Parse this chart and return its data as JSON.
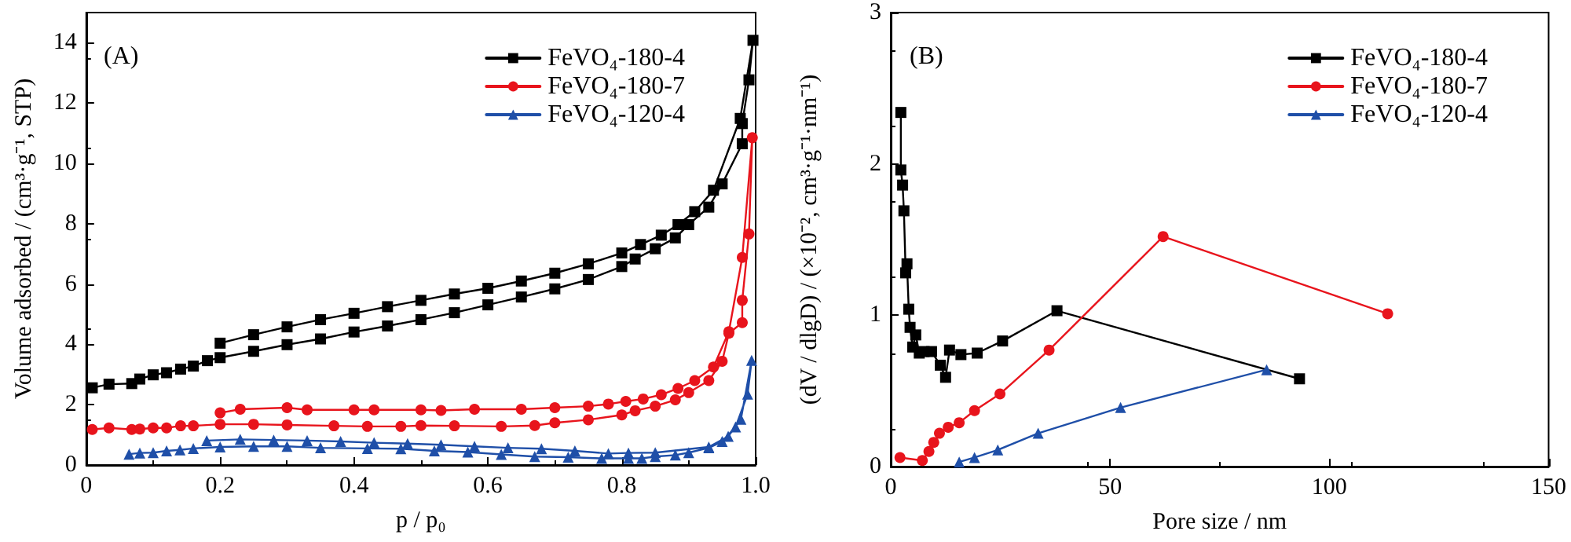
{
  "chart_data": [
    {
      "type": "line",
      "xlabel": "p / p₀",
      "ylabel": "Volume adsorbed / (cm³·g⁻¹, STP)",
      "annotations": [
        "(A)"
      ],
      "xlim": [
        0,
        1
      ],
      "xticks": [
        0,
        0.2,
        0.4,
        0.6,
        0.8,
        {
          "value": 1,
          "label": "1.0"
        }
      ],
      "ylim": [
        0,
        15
      ],
      "yticks": [
        0,
        2,
        4,
        6,
        8,
        10,
        12,
        14
      ],
      "grid": false,
      "legend": "top right",
      "line_style": "solid",
      "series": [
        {
          "name": "FeVO₄-180-4",
          "color": "#000000",
          "marker": "square",
          "x": [
            0.009,
            0.034,
            0.068,
            0.08,
            0.1,
            0.12,
            0.141,
            0.16,
            0.181,
            0.2,
            0.25,
            0.3,
            0.35,
            0.4,
            0.45,
            0.5,
            0.55,
            0.6,
            0.65,
            0.7,
            0.75,
            0.8,
            0.82,
            0.85,
            0.88,
            0.9,
            0.93,
            0.95,
            0.98,
            0.98,
            0.99,
            0.996,
            0.977,
            0.937,
            0.909,
            0.884,
            0.859,
            0.828,
            0.8,
            0.75,
            0.7,
            0.65,
            0.6,
            0.55,
            0.5,
            0.45,
            0.4,
            0.35,
            0.3,
            0.25,
            0.2
          ],
          "values": [
            2.56,
            2.68,
            2.7,
            2.85,
            2.99,
            3.06,
            3.18,
            3.28,
            3.46,
            3.56,
            3.77,
            3.99,
            4.18,
            4.41,
            4.61,
            4.82,
            5.05,
            5.31,
            5.57,
            5.84,
            6.15,
            6.58,
            6.83,
            7.17,
            7.53,
            7.97,
            8.55,
            9.32,
            10.65,
            11.32,
            12.77,
            14.08,
            11.49,
            9.11,
            8.4,
            7.97,
            7.62,
            7.31,
            7.03,
            6.67,
            6.36,
            6.1,
            5.86,
            5.67,
            5.46,
            5.25,
            5.03,
            4.82,
            4.58,
            4.32,
            4.04
          ]
        },
        {
          "name": "FeVO₄-180-7",
          "color": "#e8141c",
          "marker": "circle",
          "x": [
            0.009,
            0.034,
            0.068,
            0.08,
            0.1,
            0.12,
            0.141,
            0.16,
            0.2,
            0.25,
            0.3,
            0.37,
            0.42,
            0.47,
            0.5,
            0.55,
            0.62,
            0.67,
            0.7,
            0.75,
            0.8,
            0.82,
            0.85,
            0.88,
            0.9,
            0.93,
            0.95,
            0.96,
            0.98,
            0.98,
            0.99,
            0.995,
            0.98,
            0.96,
            0.937,
            0.909,
            0.884,
            0.859,
            0.832,
            0.806,
            0.78,
            0.75,
            0.7,
            0.65,
            0.58,
            0.53,
            0.5,
            0.43,
            0.4,
            0.33,
            0.3,
            0.23,
            0.2
          ],
          "values": [
            1.18,
            1.23,
            1.18,
            1.19,
            1.23,
            1.23,
            1.3,
            1.3,
            1.35,
            1.35,
            1.33,
            1.3,
            1.28,
            1.28,
            1.31,
            1.3,
            1.28,
            1.31,
            1.4,
            1.5,
            1.66,
            1.8,
            1.95,
            2.16,
            2.4,
            2.8,
            3.44,
            4.37,
            4.72,
            5.46,
            7.66,
            10.85,
            6.88,
            4.42,
            3.25,
            2.8,
            2.54,
            2.33,
            2.19,
            2.11,
            2.02,
            1.95,
            1.9,
            1.85,
            1.85,
            1.81,
            1.83,
            1.83,
            1.83,
            1.83,
            1.9,
            1.85,
            1.73
          ]
        },
        {
          "name": "FeVO₄-120-4",
          "color": "#1f4fa8",
          "marker": "triangle",
          "x": [
            0.064,
            0.08,
            0.1,
            0.12,
            0.14,
            0.16,
            0.2,
            0.25,
            0.3,
            0.35,
            0.42,
            0.47,
            0.52,
            0.57,
            0.62,
            0.67,
            0.72,
            0.77,
            0.81,
            0.83,
            0.85,
            0.88,
            0.9,
            0.93,
            0.95,
            0.97,
            0.988,
            0.994,
            0.978,
            0.959,
            0.93,
            0.85,
            0.81,
            0.78,
            0.73,
            0.68,
            0.63,
            0.58,
            0.53,
            0.48,
            0.43,
            0.38,
            0.33,
            0.28,
            0.23,
            0.18
          ],
          "values": [
            0.36,
            0.4,
            0.41,
            0.47,
            0.5,
            0.55,
            0.6,
            0.62,
            0.62,
            0.57,
            0.55,
            0.54,
            0.47,
            0.43,
            0.35,
            0.28,
            0.26,
            0.22,
            0.22,
            0.22,
            0.28,
            0.33,
            0.41,
            0.57,
            0.78,
            1.26,
            2.35,
            3.47,
            1.52,
            0.95,
            0.6,
            0.41,
            0.4,
            0.38,
            0.47,
            0.54,
            0.57,
            0.62,
            0.67,
            0.71,
            0.74,
            0.78,
            0.81,
            0.83,
            0.85,
            0.81
          ]
        }
      ]
    },
    {
      "type": "line",
      "xlabel": "Pore size / nm",
      "ylabel": "(dV / dlgD) / (×10⁻², cm³·g⁻¹·nm⁻¹)",
      "annotations": [
        "(B)"
      ],
      "xlim": [
        0,
        150
      ],
      "xticks": [
        0,
        50,
        100,
        150
      ],
      "ylim": [
        0,
        3
      ],
      "yticks": [
        0,
        1,
        2,
        3
      ],
      "grid": false,
      "legend": "top right",
      "line_style": "solid",
      "series": [
        {
          "name": "FeVO₄-180-4",
          "color": "#000000",
          "marker": "square",
          "x": [
            2.3,
            2.3,
            2.7,
            3.0,
            3.4,
            3.7,
            4.1,
            4.4,
            5.0,
            5.7,
            6.5,
            7.6,
            9.3,
            11.3,
            12.5,
            13.4,
            16.0,
            19.7,
            25.5,
            37.9,
            93.2
          ],
          "values": [
            2.34,
            1.96,
            1.86,
            1.69,
            1.28,
            1.34,
            1.04,
            0.92,
            0.79,
            0.87,
            0.75,
            0.76,
            0.76,
            0.67,
            0.59,
            0.77,
            0.74,
            0.75,
            0.83,
            1.03,
            0.58
          ]
        },
        {
          "name": "FeVO₄-180-7",
          "color": "#e8141c",
          "marker": "circle",
          "x": [
            2.1,
            7.2,
            8.7,
            9.8,
            11.1,
            13.1,
            15.6,
            19.1,
            24.9,
            36.1,
            62.1,
            113.3
          ],
          "values": [
            0.06,
            0.04,
            0.1,
            0.16,
            0.22,
            0.26,
            0.29,
            0.37,
            0.48,
            0.77,
            1.52,
            1.01
          ]
        },
        {
          "name": "FeVO₄-120-4",
          "color": "#1f4fa8",
          "marker": "triangle",
          "x": [
            15.6,
            19.1,
            24.4,
            33.6,
            52.4,
            85.7
          ],
          "values": [
            0.03,
            0.06,
            0.11,
            0.22,
            0.39,
            0.64
          ]
        }
      ]
    }
  ]
}
